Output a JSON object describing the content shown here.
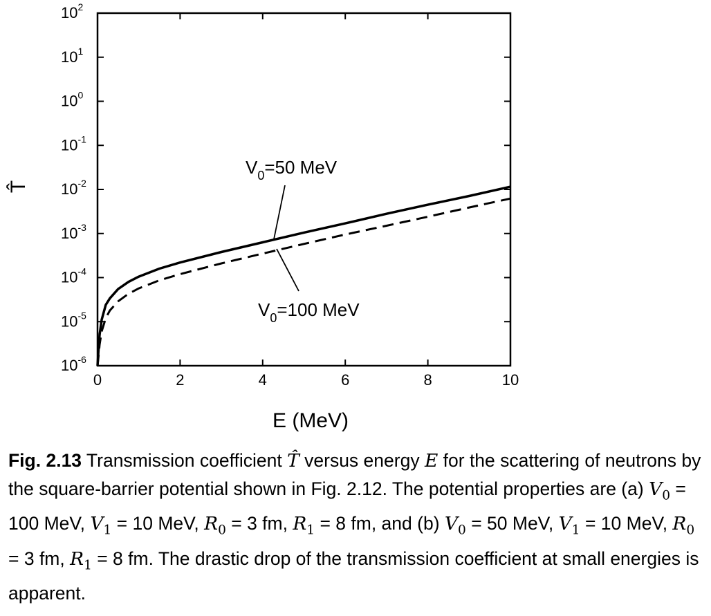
{
  "chart_data": {
    "type": "line",
    "xlabel": "E  (MeV)",
    "ylabel": "T̂",
    "xlim": [
      0,
      10
    ],
    "ylim": [
      1e-06,
      100
    ],
    "yscale": "log",
    "grid": false,
    "x_ticks": [
      "0",
      "2",
      "4",
      "6",
      "8",
      "10"
    ],
    "y_ticks": [
      {
        "base": "10",
        "exp": "-6"
      },
      {
        "base": "10",
        "exp": "-5"
      },
      {
        "base": "10",
        "exp": "-4"
      },
      {
        "base": "10",
        "exp": "-3"
      },
      {
        "base": "10",
        "exp": "-2"
      },
      {
        "base": "10",
        "exp": "-1"
      },
      {
        "base": "10",
        "exp": "0"
      },
      {
        "base": "10",
        "exp": "1"
      },
      {
        "base": "10",
        "exp": "2"
      }
    ],
    "series": [
      {
        "label": {
          "main": "V",
          "sub": "0",
          "rest": "=50 MeV"
        },
        "style": "solid",
        "x": [
          0.02,
          0.05,
          0.1,
          0.2,
          0.3,
          0.5,
          0.75,
          1,
          1.5,
          2,
          3,
          4,
          5,
          6,
          7,
          8,
          9,
          10
        ],
        "y": [
          2e-06,
          5e-06,
          1.1e-05,
          2.4e-05,
          3.4e-05,
          5.5e-05,
          8e-05,
          0.000105,
          0.00016,
          0.00022,
          0.00038,
          0.00063,
          0.00105,
          0.0017,
          0.0028,
          0.0045,
          0.0071,
          0.0115
        ]
      },
      {
        "label": {
          "main": "V",
          "sub": "0",
          "rest": "=100 MeV"
        },
        "style": "dashed",
        "x": [
          0.02,
          0.05,
          0.1,
          0.2,
          0.3,
          0.5,
          0.75,
          1,
          1.5,
          2,
          3,
          4,
          5,
          6,
          7,
          8,
          9,
          10
        ],
        "y": [
          1.5e-06,
          3e-06,
          6e-06,
          1.2e-05,
          1.8e-05,
          2.9e-05,
          4.3e-05,
          5.7e-05,
          8.7e-05,
          0.00012,
          0.00021,
          0.00035,
          0.00058,
          0.00095,
          0.0015,
          0.0024,
          0.0039,
          0.0062
        ]
      }
    ]
  },
  "caption": {
    "fig_label": "Fig. 2.13",
    "t1": "  Transmission coefficient ",
    "m_That": "T̂",
    "t2": " versus energy ",
    "m_E": "E",
    "t3": " for the scattering of neutrons by the square-barrier potential shown in Fig. 2.12. The potential properties are (a) ",
    "m_V": "V",
    "sub_0": "0",
    "sub_1": "1",
    "m_R": "R",
    "a_v0": " = 100 MeV, ",
    "a_v1": " = 10 MeV, ",
    "a_r0": " = 3 fm, ",
    "a_r1": " = 8 fm, and (b) ",
    "b_v0": " = 50 MeV, ",
    "b_v1": " = 10 MeV, ",
    "b_r0": " = 3 fm, ",
    "b_r1": " = 8 fm. The drastic drop of the transmission coefficient at small energies is apparent."
  }
}
